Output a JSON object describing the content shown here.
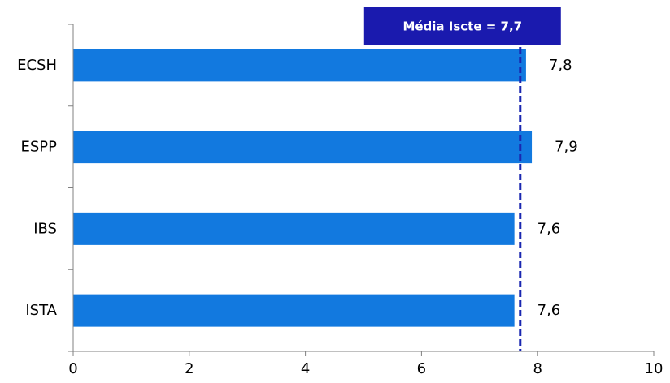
{
  "chart_data": {
    "type": "bar",
    "orientation": "horizontal",
    "categories": [
      "ECSH",
      "ESPP",
      "IBS",
      "ISTA"
    ],
    "values": [
      7.8,
      7.9,
      7.6,
      7.6
    ],
    "value_labels": [
      "7,8",
      "7,9",
      "7,6",
      "7,6"
    ],
    "xlim": [
      0,
      10
    ],
    "xticks": [
      0,
      2,
      4,
      6,
      8,
      10
    ],
    "tick_labels": [
      "0",
      "2",
      "4",
      "6",
      "8",
      "10"
    ],
    "title": "",
    "xlabel": "",
    "ylabel": "",
    "grid": false,
    "reference_line": {
      "value": 7.7,
      "label": "Média Iscte = 7,7",
      "style": "dashed"
    },
    "colors": {
      "bar": "#1279DF",
      "reference_line": "#1A27B0",
      "reference_box": "#1A1AAE",
      "axis": "#808080"
    }
  }
}
